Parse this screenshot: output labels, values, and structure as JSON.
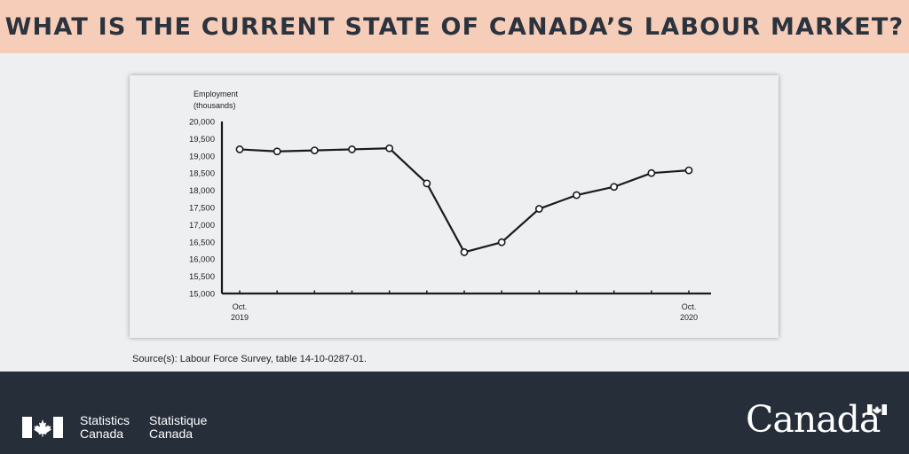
{
  "header": {
    "title": "WHAT IS THE CURRENT STATE OF CANADA’S LABOUR MARKET?"
  },
  "chart_data": {
    "type": "line",
    "ylabel_lines": [
      "Employment",
      "(thousands)"
    ],
    "ylim": [
      15000,
      20000
    ],
    "y_ticks": [
      15000,
      15500,
      16000,
      16500,
      17000,
      17500,
      18000,
      18500,
      19000,
      19500,
      20000
    ],
    "y_tick_labels": [
      "15,000",
      "15,500",
      "16,000",
      "16,500",
      "17,000",
      "17,500",
      "18,000",
      "18,500",
      "19,000",
      "19,500",
      "20,000"
    ],
    "x_tick_labels": [
      {
        "index": 0,
        "lines": [
          "Oct.",
          "2019"
        ]
      },
      {
        "index": 12,
        "lines": [
          "Oct.",
          "2020"
        ]
      }
    ],
    "series": [
      {
        "values": [
          19190,
          19130,
          19160,
          19190,
          19220,
          18200,
          16200,
          16490,
          17460,
          17860,
          18100,
          18500,
          18580
        ]
      }
    ],
    "grid": false,
    "color": "#1a1a1a"
  },
  "source": "Source(s): Labour Force Survey, table 14-10-0287-01.",
  "footer": {
    "sc_en_lines": [
      "Statistics",
      "Canada"
    ],
    "sc_fr_lines": [
      "Statistique",
      "Canada"
    ],
    "wordmark": "Canada"
  }
}
